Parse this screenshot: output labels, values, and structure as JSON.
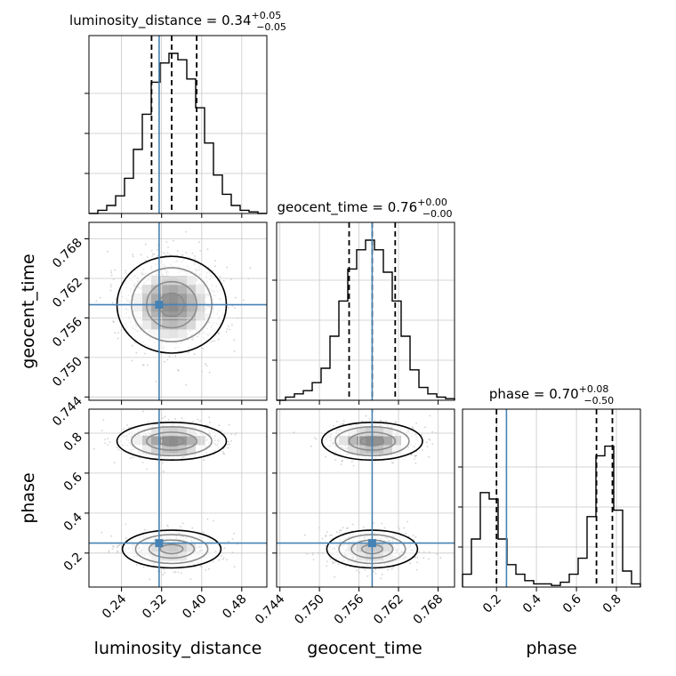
{
  "chart_data": {
    "type": "corner",
    "parameters": [
      "luminosity_distance",
      "geocent_time",
      "phase"
    ],
    "axis_labels": [
      "luminosity_distance",
      "geocent_time",
      "phase"
    ],
    "ranges": {
      "luminosity_distance": [
        0.175,
        0.53
      ],
      "geocent_time": [
        0.7435,
        0.7705
      ],
      "phase": [
        0.03,
        0.92
      ]
    },
    "ticks": {
      "luminosity_distance": [
        "0.24",
        "0.32",
        "0.40",
        "0.48"
      ],
      "geocent_time": [
        "0.744",
        "0.750",
        "0.756",
        "0.762",
        "0.768"
      ],
      "phase": [
        "0.2",
        "0.4",
        "0.6",
        "0.8"
      ]
    },
    "ticks_y": {
      "geocent_time": [
        "0.744",
        "0.750",
        "0.756",
        "0.762",
        "0.768"
      ],
      "phase": [
        "0.2",
        "0.4",
        "0.6",
        "0.8"
      ]
    },
    "truths": {
      "luminosity_distance": 0.315,
      "geocent_time": 0.758,
      "phase": 0.25
    },
    "truth_color": "#4682b4",
    "quantiles": {
      "luminosity_distance": [
        0.3,
        0.34,
        0.39
      ],
      "geocent_time": [
        0.7545,
        0.758,
        0.7615
      ],
      "phase": [
        0.2,
        0.7,
        0.78
      ]
    },
    "titles": [
      {
        "param": "luminosity_distance",
        "text": "luminosity_distance = 0.34",
        "plus": "+0.05",
        "minus": "−0.05"
      },
      {
        "param": "geocent_time",
        "text": "geocent_time = 0.76",
        "plus": "+0.00",
        "minus": "−0.00"
      },
      {
        "param": "phase",
        "text": "phase = 0.70",
        "plus": "+0.08",
        "minus": "−0.50"
      }
    ],
    "histograms": {
      "luminosity_distance": {
        "edges": [
          0.175,
          0.19275,
          0.2105,
          0.22825,
          0.246,
          0.26375,
          0.2815,
          0.29925,
          0.317,
          0.33475,
          0.3525,
          0.37025,
          0.388,
          0.40575,
          0.4235,
          0.44125,
          0.459,
          0.47675,
          0.4945,
          0.51225,
          0.53
        ],
        "counts": [
          0,
          0.02,
          0.05,
          0.11,
          0.22,
          0.4,
          0.62,
          0.82,
          0.94,
          1.0,
          0.96,
          0.84,
          0.66,
          0.44,
          0.24,
          0.12,
          0.05,
          0.02,
          0.01,
          0
        ]
      },
      "geocent_time": {
        "edges": [
          0.7435,
          0.74485,
          0.7462,
          0.74755,
          0.7489,
          0.75025,
          0.7516,
          0.75295,
          0.7543,
          0.75565,
          0.757,
          0.75835,
          0.7597,
          0.76105,
          0.7624,
          0.76375,
          0.7651,
          0.76645,
          0.7678,
          0.76915,
          0.7705
        ],
        "counts": [
          0,
          0.02,
          0.04,
          0.06,
          0.11,
          0.2,
          0.4,
          0.62,
          0.82,
          0.94,
          1.0,
          0.94,
          0.8,
          0.62,
          0.4,
          0.19,
          0.08,
          0.04,
          0.02,
          0.01
        ]
      },
      "phase": {
        "edges": [
          0.03,
          0.0745,
          0.119,
          0.1635,
          0.208,
          0.2525,
          0.297,
          0.3415,
          0.386,
          0.4305,
          0.475,
          0.5195,
          0.564,
          0.6085,
          0.653,
          0.6975,
          0.742,
          0.7865,
          0.831,
          0.8755,
          0.92
        ],
        "counts": [
          0.08,
          0.3,
          0.59,
          0.55,
          0.3,
          0.14,
          0.08,
          0.04,
          0.02,
          0.02,
          0.01,
          0.03,
          0.08,
          0.18,
          0.44,
          0.82,
          0.88,
          0.48,
          0.1,
          0.02
        ]
      }
    },
    "posterior_2d": {
      "luminosity_distance": {
        "modes": [
          {
            "mean": 0.34,
            "sd": 0.05,
            "weight": 1.0
          }
        ]
      },
      "geocent_time": {
        "modes": [
          {
            "mean": 0.758,
            "sd": 0.0035,
            "weight": 1.0
          }
        ]
      },
      "phase": {
        "modes": [
          {
            "mean": 0.76,
            "sd": 0.045,
            "weight": 0.62
          },
          {
            "mean": 0.22,
            "sd": 0.05,
            "weight": 0.38
          }
        ]
      }
    },
    "grid": true
  }
}
